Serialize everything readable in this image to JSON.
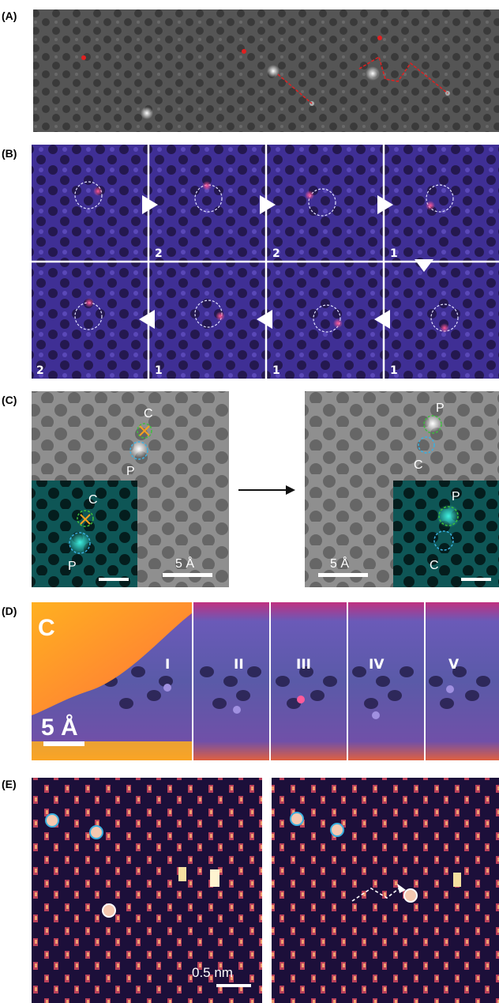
{
  "figure": {
    "panels": {
      "A": {
        "label": "(A)"
      },
      "B": {
        "label": "(B)",
        "frame_numbers": [
          "2",
          "2",
          "1",
          "2",
          "1",
          "1",
          "1"
        ]
      },
      "C": {
        "label": "(C)",
        "carbon_label": "C",
        "phosphorus_label": "P",
        "scalebar": "5 Å"
      },
      "D": {
        "label": "(D)",
        "corner_label": "C",
        "scalebar": "5 Å",
        "frames": [
          "I",
          "II",
          "III",
          "IV",
          "V"
        ]
      },
      "E": {
        "label": "(E)",
        "scalebar": "0.5 nm"
      }
    }
  },
  "colors": {
    "stem_gray": "#5a5a5a",
    "purple": "#3a2a8c",
    "teal": "#0d4a4a",
    "annotation_red": "#e02020",
    "cyan_circle": "#3ab0e0",
    "green_circle": "#3cbf3c",
    "orange_cross": "#f5a020"
  }
}
